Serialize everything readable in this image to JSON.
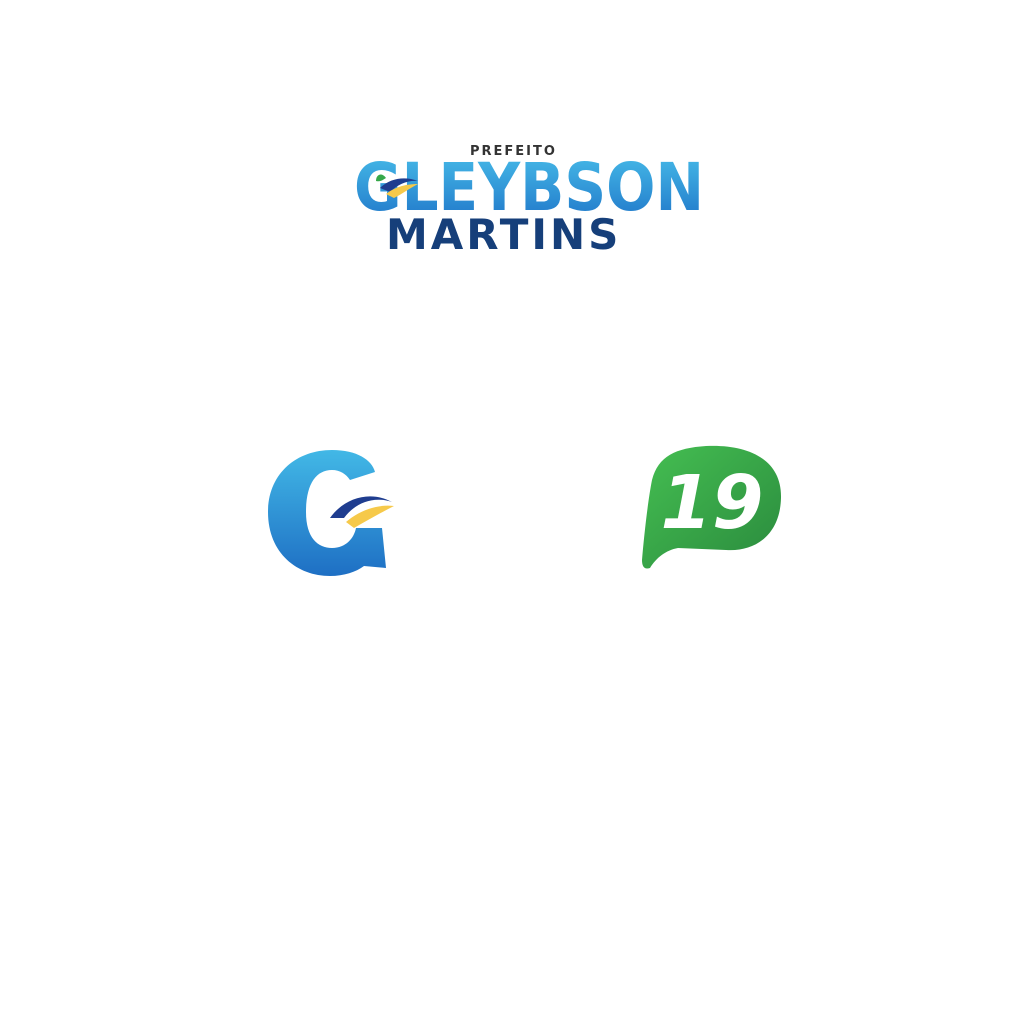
{
  "logo": {
    "prefix": "PREFEITO",
    "first_name": "GLEYBSON",
    "last_name": "MARTINS"
  },
  "badge": {
    "number": "19"
  },
  "colors": {
    "blue_light": "#3fb4e6",
    "blue_dark": "#1e6fc4",
    "navy": "#163f7a",
    "wave_navy": "#1f3d8f",
    "wave_yellow": "#f6c94a",
    "leaf_green": "#36a84a",
    "badge_green_light": "#3fb94e",
    "badge_green_dark": "#2b8c3f",
    "white": "#ffffff"
  },
  "icons": {
    "logo_mark": "g-wave-icon",
    "number_badge": "speech-bubble-icon"
  }
}
